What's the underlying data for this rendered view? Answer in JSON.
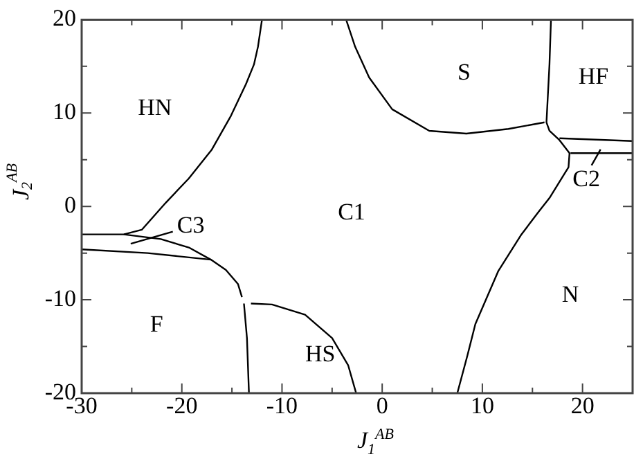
{
  "chart_data": {
    "type": "line",
    "xlabel": "J$_{1}$$^{AB}$",
    "ylabel": "J$_{2}$$^{AB}$",
    "xlim": [
      -30,
      25
    ],
    "ylim": [
      -20,
      20
    ],
    "xticks": [
      -30,
      {
        "value": -25,
        "label": null
      },
      -20,
      {
        "value": -15,
        "label": null
      },
      -10,
      {
        "value": -5,
        "label": null
      },
      0,
      {
        "value": 5,
        "label": null
      },
      10,
      {
        "value": 15,
        "label": null
      },
      20,
      {
        "value": 25,
        "label": null
      }
    ],
    "yticks": [
      -20,
      {
        "value": -15,
        "label": null
      },
      -10,
      {
        "value": -5,
        "label": null
      },
      0,
      {
        "value": 5,
        "label": null
      },
      10,
      {
        "value": 15,
        "label": null
      },
      20
    ],
    "series": [
      {
        "type": "line",
        "color": "#000000",
        "x": [
          -12.0,
          -12.4,
          -12.8,
          -13.6,
          -15.1,
          -17.0,
          -19.3,
          -21.6,
          -24.0,
          -25.8,
          -30
        ],
        "values": [
          20,
          17.1,
          15.2,
          13.1,
          9.7,
          6.1,
          3.0,
          0.4,
          -2.5,
          -3.0,
          -3.0
        ]
      },
      {
        "type": "line",
        "color": "#000000",
        "x": [
          -25.8,
          -22.1,
          -19.3,
          -17.1
        ],
        "values": [
          -3.0,
          -3.5,
          -4.4,
          -5.7
        ]
      },
      {
        "type": "line",
        "color": "#000000",
        "x": [
          -30,
          -23.4,
          -17.1,
          -15.6,
          -14.4,
          -14.0
        ],
        "values": [
          -4.6,
          -5.0,
          -5.7,
          -6.8,
          -8.3,
          -9.7
        ]
      },
      {
        "type": "line",
        "color": "#000000",
        "x": [
          -13.8,
          -13.5,
          -13.3
        ],
        "values": [
          -10.4,
          -14.1,
          -20
        ]
      },
      {
        "type": "line",
        "color": "#000000",
        "x": [
          -13.1,
          -11.0,
          -7.7,
          -5.0,
          -3.4,
          -2.6
        ],
        "values": [
          -10.4,
          -10.5,
          -11.6,
          -14.1,
          -17.0,
          -20
        ]
      },
      {
        "type": "line",
        "color": "#000000",
        "x": [
          -3.6,
          -2.7,
          -1.3,
          1.0,
          4.7,
          8.4,
          12.6,
          16.2
        ],
        "values": [
          20,
          17.1,
          13.8,
          10.4,
          8.1,
          7.8,
          8.3,
          9.0
        ]
      },
      {
        "type": "line",
        "color": "#000000",
        "x": [
          16.85,
          16.7,
          16.4,
          16.7,
          17.7,
          18.7,
          18.6,
          16.7,
          15.6,
          13.9,
          11.6,
          9.3,
          8.5,
          7.5
        ],
        "values": [
          20,
          15.2,
          9.0,
          8.1,
          7.1,
          5.7,
          4.2,
          0.9,
          -0.6,
          -3.0,
          -6.9,
          -12.6,
          -16.0,
          -20
        ]
      },
      {
        "type": "line",
        "color": "#000000",
        "x": [
          17.7,
          25
        ],
        "values": [
          7.3,
          7.0
        ]
      },
      {
        "type": "line",
        "color": "#000000",
        "x": [
          18.8,
          25
        ],
        "values": [
          5.7,
          5.7
        ]
      },
      {
        "type": "line",
        "color": "#000000",
        "x": [
          -25.1,
          -20.9
        ],
        "values": [
          -4.0,
          -2.7
        ]
      },
      {
        "type": "line",
        "color": "#000000",
        "x": [
          20.9,
          21.8
        ],
        "values": [
          4.4,
          6.1
        ]
      }
    ],
    "annotations": [
      "HN",
      "S",
      "HF",
      "C1",
      "C2",
      "C3",
      "N",
      "F",
      "HS"
    ]
  }
}
